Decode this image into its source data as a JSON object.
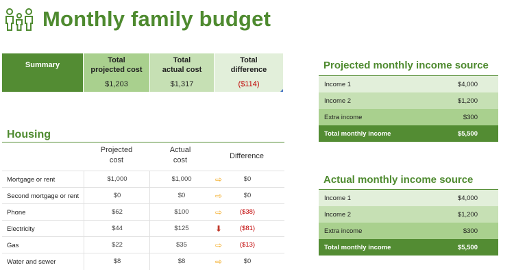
{
  "title": "Monthly family budget",
  "icons": {
    "family": "family-icon"
  },
  "colors": {
    "brand_green": "#538c33",
    "title_green": "#4e8a2f",
    "negative_red": "#c00000"
  },
  "summary": {
    "label": "Summary",
    "columns": [
      {
        "header": "Total\nprojected cost",
        "value": "$1,203"
      },
      {
        "header": "Total\nactual cost",
        "value": "$1,317"
      },
      {
        "header": "Total\ndifference",
        "value": "($114)"
      }
    ]
  },
  "housing": {
    "title": "Housing",
    "headers": {
      "projected": "Projected\ncost",
      "actual": "Actual\ncost",
      "difference": "Difference"
    },
    "rows": [
      {
        "label": "Mortgage or rent",
        "projected": "$1,000",
        "actual": "$1,000",
        "difference": "$0",
        "arrow": "right"
      },
      {
        "label": "Second mortgage or rent",
        "projected": "$0",
        "actual": "$0",
        "difference": "$0",
        "arrow": "right"
      },
      {
        "label": "Phone",
        "projected": "$62",
        "actual": "$100",
        "difference": "($38)",
        "arrow": "right"
      },
      {
        "label": "Electricity",
        "projected": "$44",
        "actual": "$125",
        "difference": "($81)",
        "arrow": "down"
      },
      {
        "label": "Gas",
        "projected": "$22",
        "actual": "$35",
        "difference": "($13)",
        "arrow": "right"
      },
      {
        "label": "Water and sewer",
        "projected": "$8",
        "actual": "$8",
        "difference": "$0",
        "arrow": "right"
      }
    ]
  },
  "projected_income": {
    "title": "Projected monthly income source",
    "rows": [
      {
        "name": "Income 1",
        "amount": "$4,000"
      },
      {
        "name": "Income 2",
        "amount": "$1,200"
      },
      {
        "name": "Extra income",
        "amount": "$300"
      }
    ],
    "total": {
      "name": "Total monthly income",
      "amount": "$5,500"
    }
  },
  "actual_income": {
    "title": "Actual monthly income source",
    "rows": [
      {
        "name": "Income 1",
        "amount": "$4,000"
      },
      {
        "name": "Income 2",
        "amount": "$1,200"
      },
      {
        "name": "Extra income",
        "amount": "$300"
      }
    ],
    "total": {
      "name": "Total monthly income",
      "amount": "$5,500"
    }
  }
}
